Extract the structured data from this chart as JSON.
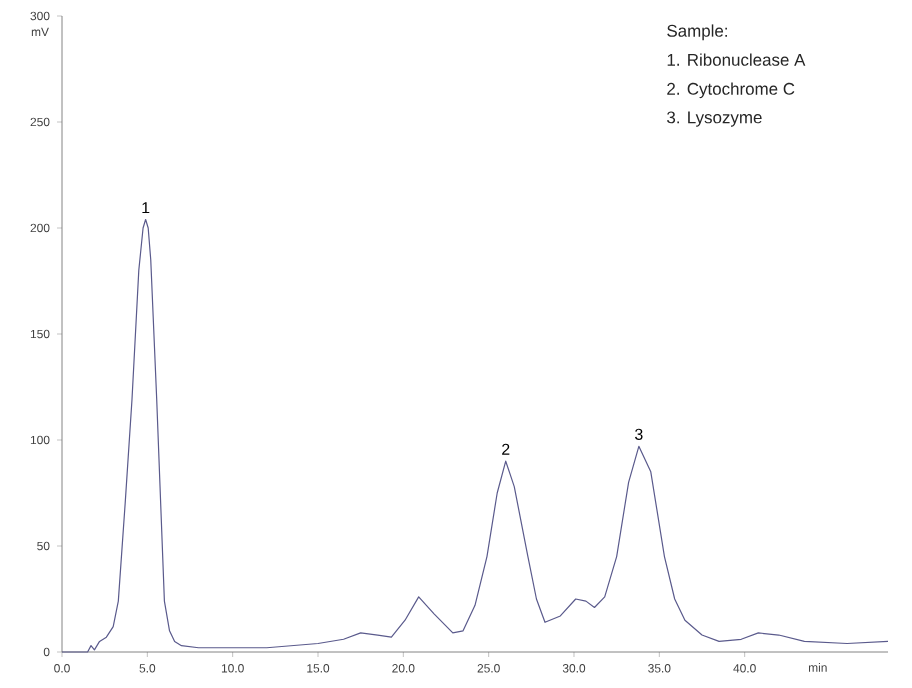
{
  "chart_data": {
    "type": "line",
    "xlabel": "min",
    "ylabel": "mV",
    "x": [
      0,
      1.5,
      1.7,
      1.9,
      2.2,
      2.6,
      3.0,
      3.3,
      3.7,
      4.1,
      4.5,
      4.75,
      4.9,
      5.05,
      5.2,
      5.55,
      6.0,
      6.3,
      6.6,
      7.0,
      8,
      10,
      12,
      15,
      16.5,
      17.5,
      18.5,
      19.3,
      20.1,
      20.9,
      21.8,
      22.9,
      23.5,
      24.2,
      24.9,
      25.5,
      26.0,
      26.5,
      27.3,
      27.8,
      28.3,
      29.2,
      30.1,
      30.7,
      31.2,
      31.8,
      32.5,
      33.2,
      33.8,
      34.5,
      35.3,
      35.9,
      36.5,
      37.5,
      38.5,
      39.8,
      40.8,
      42,
      43.5,
      46,
      48.4
    ],
    "series": [
      {
        "color": "#5a5a8c",
        "values": [
          0,
          0,
          3,
          1,
          5,
          7,
          12,
          24,
          70,
          119,
          180,
          200,
          204,
          200,
          185,
          119,
          24,
          10,
          5,
          3,
          2,
          2,
          2,
          4,
          6,
          9,
          8,
          7,
          15,
          26,
          18,
          9,
          10,
          22,
          45,
          75,
          90,
          78,
          45,
          25,
          14,
          17,
          25,
          24,
          21,
          26,
          45,
          80,
          97,
          85,
          45,
          25,
          15,
          8,
          5,
          6,
          9,
          8,
          5,
          4,
          5
        ]
      }
    ],
    "xlim": [
      0,
      48.4
    ],
    "ylim": [
      0,
      300
    ],
    "xticks": [
      {
        "value": 0,
        "label": "0.0"
      },
      {
        "value": 5,
        "label": "5.0"
      },
      {
        "value": 10,
        "label": "10.0"
      },
      {
        "value": 15,
        "label": "15.0"
      },
      {
        "value": 20,
        "label": "20.0"
      },
      {
        "value": 25,
        "label": "25.0"
      },
      {
        "value": 30,
        "label": "30.0"
      },
      {
        "value": 35,
        "label": "35.0"
      },
      {
        "value": 40,
        "label": "40.0"
      }
    ],
    "yticks": [
      0,
      50,
      100,
      150,
      200,
      250,
      300
    ],
    "grid": false,
    "marker": "none",
    "line_style": "solid",
    "annotations": [
      "Sample:",
      "1. Ribonuclease A",
      "2. Cytochrome C",
      "3. Lysozyme",
      {
        "text": "1",
        "x": 4.9,
        "y": 204
      },
      {
        "text": "2",
        "x": 26.0,
        "y": 90
      },
      {
        "text": "3",
        "x": 33.8,
        "y": 97
      }
    ]
  }
}
